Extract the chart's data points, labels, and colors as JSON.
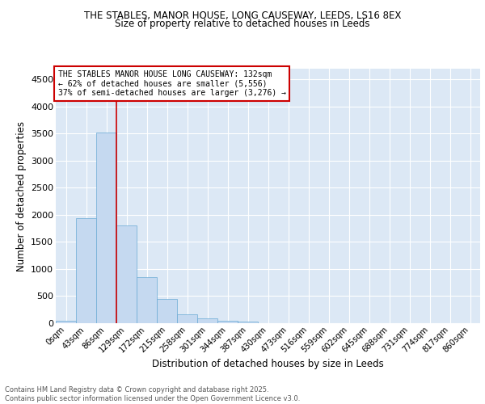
{
  "title1": "THE STABLES, MANOR HOUSE, LONG CAUSEWAY, LEEDS, LS16 8EX",
  "title2": "Size of property relative to detached houses in Leeds",
  "xlabel": "Distribution of detached houses by size in Leeds",
  "ylabel": "Number of detached properties",
  "bar_labels": [
    "0sqm",
    "43sqm",
    "86sqm",
    "129sqm",
    "172sqm",
    "215sqm",
    "258sqm",
    "301sqm",
    "344sqm",
    "387sqm",
    "430sqm",
    "473sqm",
    "516sqm",
    "559sqm",
    "602sqm",
    "645sqm",
    "688sqm",
    "731sqm",
    "774sqm",
    "817sqm",
    "860sqm"
  ],
  "bar_values": [
    40,
    1940,
    3520,
    1800,
    850,
    450,
    165,
    95,
    45,
    25,
    0,
    0,
    0,
    0,
    0,
    0,
    0,
    0,
    0,
    0,
    0
  ],
  "bar_color": "#c5d9f0",
  "bar_edge_color": "#6aaad4",
  "background_color": "#dce8f5",
  "grid_color": "#ffffff",
  "vline_color": "#cc0000",
  "vline_x_index": 2,
  "annotation_text": "THE STABLES MANOR HOUSE LONG CAUSEWAY: 132sqm\n← 62% of detached houses are smaller (5,556)\n37% of semi-detached houses are larger (3,276) →",
  "annotation_box_facecolor": "#ffffff",
  "annotation_box_edge": "#cc0000",
  "ylim": [
    0,
    4700
  ],
  "yticks": [
    0,
    500,
    1000,
    1500,
    2000,
    2500,
    3000,
    3500,
    4000,
    4500
  ],
  "footer_text": "Contains HM Land Registry data © Crown copyright and database right 2025.\nContains public sector information licensed under the Open Government Licence v3.0.",
  "fig_bg": "#ffffff"
}
